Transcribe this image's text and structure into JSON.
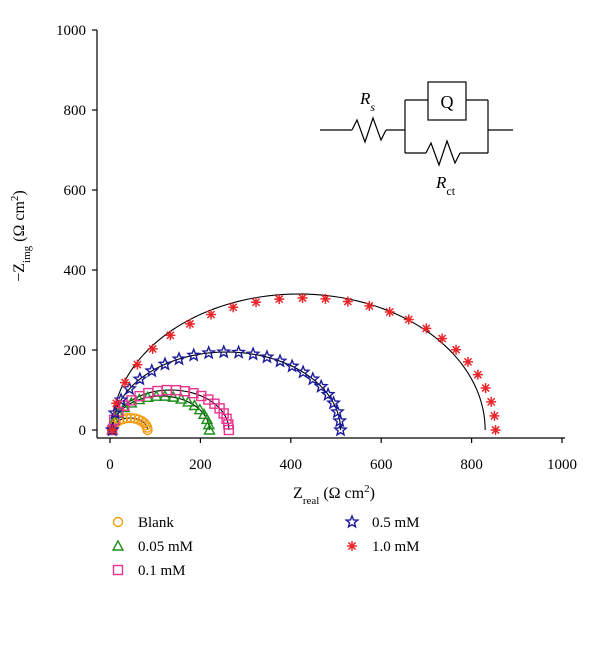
{
  "chart_data": {
    "type": "scatter",
    "title": "",
    "xlabel": {
      "main": "Z",
      "sub": "real",
      "unit_open": " (Ω cm",
      "unit_sup": "2",
      "unit_close": ")"
    },
    "ylabel": {
      "main": "−Z",
      "sub": "img",
      "unit_open": " (Ω cm",
      "unit_sup": "2",
      "unit_close": ")"
    },
    "xlim": [
      0,
      1000
    ],
    "ylim": [
      0,
      1000
    ],
    "xticks": [
      0,
      200,
      400,
      600,
      800,
      1000
    ],
    "yticks": [
      0,
      200,
      400,
      600,
      800,
      1000
    ],
    "grid": false,
    "legend_position": "bottom-left",
    "circuit": {
      "rs_main": "R",
      "rs_sub": "s",
      "q_label": "Q",
      "rct_main": "R",
      "rct_sub": "ct"
    },
    "series": [
      {
        "name": "Blank",
        "marker": "circle",
        "color": "#f39c12",
        "Rs": 5,
        "Rct": 78,
        "peak": 30,
        "fit_peak": 30,
        "n_points": 14
      },
      {
        "name": "0.05 mM",
        "marker": "triangle",
        "color": "#1a8f1a",
        "Rs": 5,
        "Rct": 215,
        "peak": 85,
        "fit_peak": 85,
        "n_points": 18
      },
      {
        "name": "0.1 mM",
        "marker": "square",
        "color": "#e8338f",
        "Rs": 5,
        "Rct": 258,
        "peak": 100,
        "fit_peak": 100,
        "n_points": 20
      },
      {
        "name": "0.5 mM",
        "marker": "star",
        "color": "#1a1a9a",
        "Rs": 5,
        "Rct": 505,
        "peak": 195,
        "fit_peak": 195,
        "n_points": 24
      },
      {
        "name": "1.0 mM",
        "marker": "asterisk",
        "color": "#e8262a",
        "Rs": 5,
        "Rct": 848,
        "peak": 330,
        "fit_peak": 340,
        "fit_Rct": 825,
        "n_points": 26
      }
    ]
  }
}
